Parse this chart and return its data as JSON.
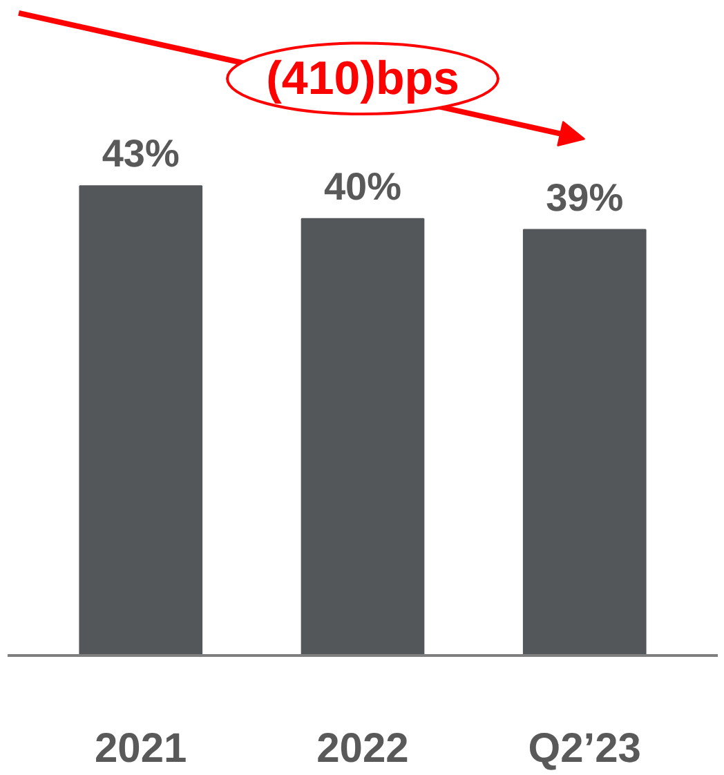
{
  "chart_data": {
    "type": "bar",
    "categories": [
      "2021",
      "2022",
      "Q2’23"
    ],
    "values": [
      43,
      40,
      39
    ],
    "color": "#54575a",
    "value_labels": [
      "43%",
      "40%",
      "39%"
    ],
    "tick_labels": "x",
    "grid": false,
    "annotations": [
      "(410)bps"
    ]
  }
}
